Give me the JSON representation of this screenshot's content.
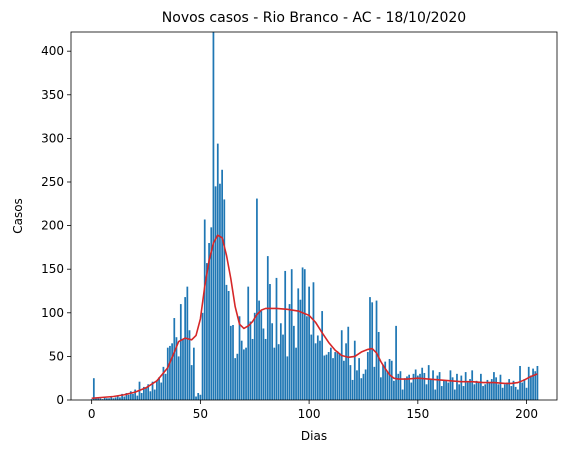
{
  "chart_data": {
    "type": "bar",
    "title": "Novos casos - Rio Branco - AC - 18/10/2020",
    "xlabel": "Dias",
    "ylabel": "Casos",
    "xlim": [
      -9.5,
      214
    ],
    "ylim": [
      0,
      422
    ],
    "xticks": [
      0,
      50,
      100,
      150,
      200
    ],
    "yticks": [
      0,
      50,
      100,
      150,
      200,
      250,
      300,
      350,
      400
    ],
    "grid": false,
    "bar_color": "#1f77b4",
    "line_color": "#d62728",
    "series": [
      {
        "type": "bar",
        "x_start": 0,
        "values": [
          1,
          25,
          3,
          2,
          2,
          1,
          3,
          2,
          2,
          4,
          2,
          3,
          5,
          3,
          7,
          4,
          8,
          6,
          10,
          7,
          12,
          5,
          21,
          8,
          15,
          14,
          18,
          10,
          21,
          12,
          22,
          26,
          20,
          38,
          30,
          60,
          62,
          65,
          94,
          72,
          50,
          110,
          70,
          118,
          130,
          80,
          40,
          60,
          4,
          8,
          6,
          100,
          207,
          157,
          180,
          198,
          422,
          245,
          294,
          248,
          264,
          230,
          132,
          125,
          85,
          86,
          48,
          53,
          96,
          68,
          58,
          60,
          130,
          90,
          70,
          100,
          231,
          114,
          102,
          82,
          70,
          165,
          133,
          88,
          60,
          140,
          64,
          88,
          75,
          148,
          50,
          110,
          150,
          85,
          60,
          128,
          115,
          152,
          150,
          96,
          130,
          75,
          135,
          65,
          74,
          68,
          102,
          51,
          52,
          55,
          60,
          48,
          55,
          56,
          53,
          80,
          45,
          65,
          84,
          40,
          23,
          68,
          34,
          48,
          25,
          30,
          35,
          55,
          118,
          112,
          38,
          114,
          78,
          26,
          40,
          44,
          32,
          47,
          45,
          22,
          85,
          30,
          33,
          12,
          25,
          27,
          29,
          20,
          30,
          35,
          28,
          30,
          37,
          31,
          18,
          40,
          24,
          34,
          12,
          28,
          32,
          16,
          23,
          22,
          20,
          34,
          26,
          12,
          30,
          18,
          28,
          16,
          32,
          20,
          24,
          34,
          18,
          22,
          20,
          30,
          16,
          18,
          23,
          20,
          24,
          32,
          26,
          18,
          29,
          14,
          18,
          20,
          24,
          16,
          22,
          15,
          12,
          39,
          20,
          24,
          14,
          38,
          28,
          36,
          33,
          39
        ]
      },
      {
        "type": "line",
        "name": "",
        "points": [
          [
            0,
            2
          ],
          [
            5,
            3
          ],
          [
            10,
            4
          ],
          [
            15,
            6
          ],
          [
            20,
            9
          ],
          [
            25,
            14
          ],
          [
            30,
            22
          ],
          [
            35,
            37
          ],
          [
            38,
            55
          ],
          [
            40,
            67
          ],
          [
            43,
            71
          ],
          [
            46,
            69
          ],
          [
            48,
            74
          ],
          [
            50,
            93
          ],
          [
            52,
            130
          ],
          [
            54,
            160
          ],
          [
            56,
            180
          ],
          [
            58,
            189
          ],
          [
            60,
            186
          ],
          [
            62,
            166
          ],
          [
            64,
            139
          ],
          [
            66,
            107
          ],
          [
            68,
            87
          ],
          [
            70,
            82
          ],
          [
            72,
            85
          ],
          [
            74,
            90
          ],
          [
            76,
            98
          ],
          [
            78,
            103
          ],
          [
            80,
            105
          ],
          [
            85,
            105
          ],
          [
            90,
            104
          ],
          [
            95,
            102
          ],
          [
            100,
            97
          ],
          [
            103,
            89
          ],
          [
            106,
            77
          ],
          [
            109,
            66
          ],
          [
            112,
            57
          ],
          [
            115,
            51
          ],
          [
            118,
            49
          ],
          [
            121,
            50
          ],
          [
            124,
            55
          ],
          [
            127,
            58
          ],
          [
            129,
            59
          ],
          [
            131,
            54
          ],
          [
            133,
            44
          ],
          [
            135,
            36
          ],
          [
            137,
            29
          ],
          [
            139,
            25
          ],
          [
            141,
            24
          ],
          [
            145,
            24
          ],
          [
            150,
            25
          ],
          [
            155,
            24
          ],
          [
            160,
            23
          ],
          [
            165,
            22
          ],
          [
            170,
            21
          ],
          [
            175,
            21
          ],
          [
            180,
            20
          ],
          [
            185,
            20
          ],
          [
            190,
            19
          ],
          [
            193,
            19
          ],
          [
            196,
            20
          ],
          [
            199,
            23
          ],
          [
            202,
            27
          ],
          [
            205,
            30
          ]
        ]
      }
    ]
  }
}
